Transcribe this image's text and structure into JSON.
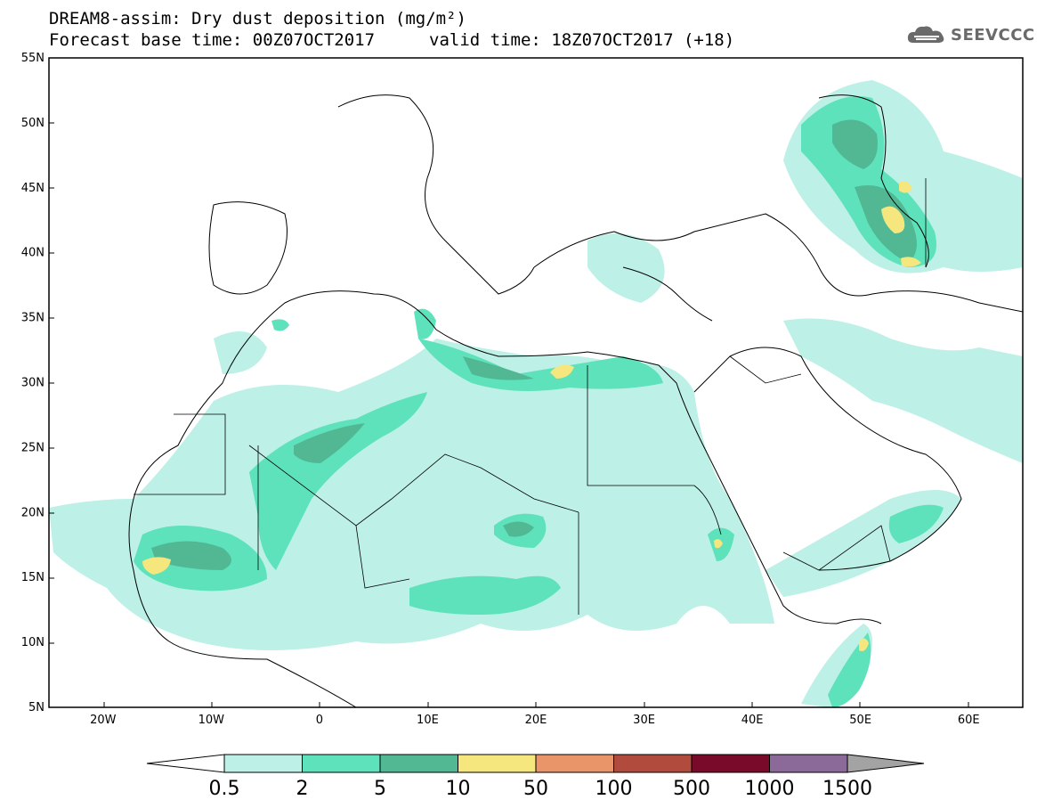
{
  "header": {
    "title_line1": "DREAM8-assim: Dry dust deposition (mg/m²)",
    "title_line2": "Forecast base time: 00Z07OCT2017",
    "valid_time": "valid time: 18Z07OCT2017 (+18)",
    "logo_text": "SEEVCCC",
    "logo_icon": "cloud-logo-icon"
  },
  "map": {
    "lon_range": [
      -25,
      65
    ],
    "lat_range": [
      5,
      55
    ],
    "lat_ticks": [
      "55N",
      "50N",
      "45N",
      "40N",
      "35N",
      "30N",
      "25N",
      "20N",
      "15N",
      "10N",
      "5N"
    ],
    "lon_ticks": [
      "20W",
      "10W",
      "0",
      "10E",
      "20E",
      "30E",
      "40E",
      "50E",
      "60E"
    ]
  },
  "colorbar": {
    "labels": [
      "0.5",
      "2",
      "5",
      "10",
      "50",
      "100",
      "500",
      "1000",
      "1500"
    ],
    "colors": [
      "#bdf0e6",
      "#5ee2bb",
      "#52b894",
      "#f5e67e",
      "#e99569",
      "#b04b3d",
      "#7a0a2a",
      "#8b6a9a",
      "#a3a3a3"
    ]
  }
}
